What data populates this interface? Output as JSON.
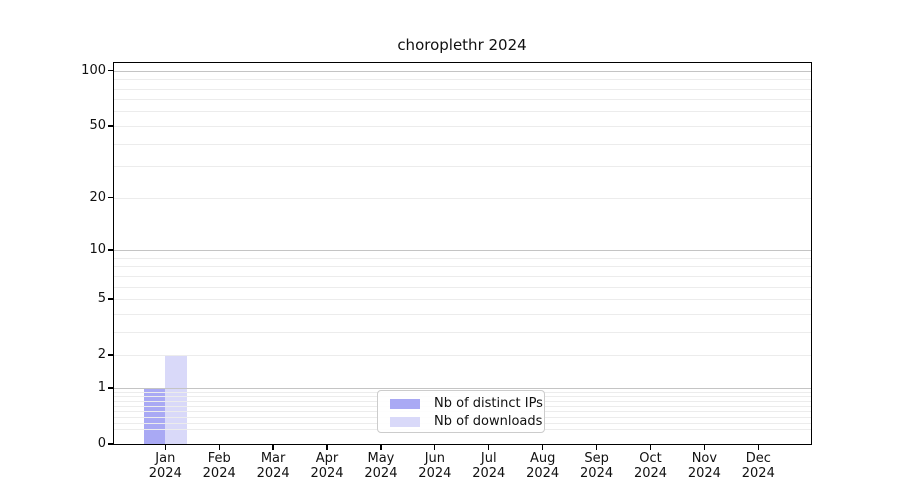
{
  "chart_data": {
    "type": "bar",
    "title": "choroplethr 2024",
    "categories": [
      {
        "month": "Jan",
        "year": "2024"
      },
      {
        "month": "Feb",
        "year": "2024"
      },
      {
        "month": "Mar",
        "year": "2024"
      },
      {
        "month": "Apr",
        "year": "2024"
      },
      {
        "month": "May",
        "year": "2024"
      },
      {
        "month": "Jun",
        "year": "2024"
      },
      {
        "month": "Jul",
        "year": "2024"
      },
      {
        "month": "Aug",
        "year": "2024"
      },
      {
        "month": "Sep",
        "year": "2024"
      },
      {
        "month": "Oct",
        "year": "2024"
      },
      {
        "month": "Nov",
        "year": "2024"
      },
      {
        "month": "Dec",
        "year": "2024"
      }
    ],
    "series": [
      {
        "name": "Nb of distinct IPs",
        "color": "#a9a9f4",
        "values": [
          1,
          0,
          0,
          0,
          0,
          0,
          0,
          0,
          0,
          0,
          0,
          0
        ]
      },
      {
        "name": "Nb of downloads",
        "color": "#d9d9f9",
        "values": [
          2,
          0,
          0,
          0,
          0,
          0,
          0,
          0,
          0,
          0,
          0,
          0
        ]
      }
    ],
    "xlabel": "",
    "ylabel": "",
    "yscale": "log1p",
    "y_ticks": [
      0,
      1,
      2,
      5,
      10,
      20,
      50,
      100
    ],
    "ylim": [
      0,
      111
    ],
    "grid": true,
    "legend_position": "lower center",
    "colors": {
      "grid_major": "#c4c4c4",
      "grid_minor": "#ececec",
      "axis": "#000000",
      "text": "#111111",
      "background": "#ffffff"
    }
  }
}
